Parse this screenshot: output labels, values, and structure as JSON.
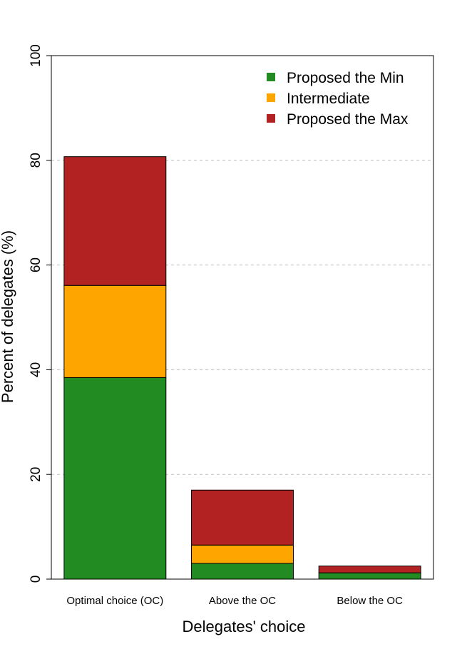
{
  "chart_data": {
    "type": "bar",
    "stacked": true,
    "categories": [
      "Optimal choice (OC)",
      "Above the OC",
      "Below the OC"
    ],
    "series": [
      {
        "name": "Proposed the Min",
        "color": "#228B22",
        "values": [
          38.5,
          3.0,
          1.2
        ]
      },
      {
        "name": "Intermediate",
        "color": "#FFA500",
        "values": [
          17.6,
          3.5,
          0.0
        ]
      },
      {
        "name": "Proposed the Max",
        "color": "#B22222",
        "values": [
          24.6,
          10.5,
          1.3
        ]
      }
    ],
    "xlabel": "Delegates' choice",
    "ylabel": "Percent of delegates (%)",
    "ylim": [
      0,
      100
    ],
    "yticks": [
      0,
      20,
      40,
      60,
      80,
      100
    ],
    "grid": "horizontal dashed at 20, 40, 60, 80",
    "legend_position": "top-right"
  }
}
